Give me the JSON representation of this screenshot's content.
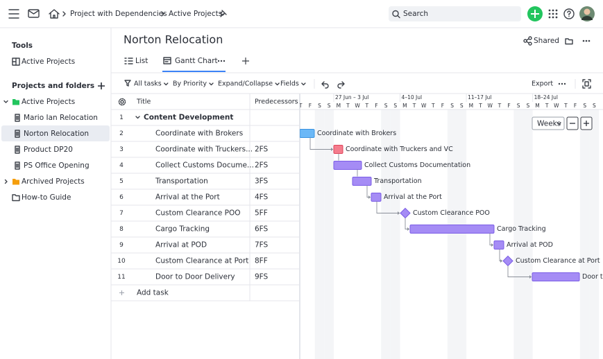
{
  "topbar": {
    "breadcrumb": [
      "Project with Dependencies",
      "Active Projects"
    ],
    "search_placeholder": "Search"
  },
  "sidebar": {
    "tools_heading": "Tools",
    "tools": [
      "Active Projects"
    ],
    "projects_heading": "Projects and folders",
    "tree": [
      "Active Projects",
      "Mario Ian Relocation",
      "Norton Relocation",
      "Product DP20",
      "PS Office Opening",
      "Archived Projects",
      "How-to Guide"
    ]
  },
  "main": {
    "title": "Norton Relocation",
    "shared": "Shared",
    "tabs": [
      "List",
      "Gantt Chart"
    ],
    "toolbar": [
      "All tasks",
      "By Priority",
      "Expand/Collapse",
      "Fields"
    ],
    "export": "Export"
  },
  "table": {
    "headers": [
      "Title",
      "Predecessors"
    ],
    "rows": [
      [
        "1",
        "Content Development",
        ""
      ],
      [
        "2",
        "Coordinate with Brokers",
        ""
      ],
      [
        "3",
        "Coordinate with Truckers...",
        "2FS"
      ],
      [
        "4",
        "Collect Customs Docume...",
        "2FS"
      ],
      [
        "5",
        "Transportation",
        "3FS"
      ],
      [
        "6",
        "Arrival at the Port",
        "4FS"
      ],
      [
        "7",
        "Custom Clearance POO",
        "5FF"
      ],
      [
        "8",
        "Cargo Tracking",
        "6FS"
      ],
      [
        "9",
        "Arrival at POD",
        "7FS"
      ],
      [
        "10",
        "Custom Clearance at Port",
        "8FF"
      ],
      [
        "11",
        "Door to Door Delivery",
        "9FS"
      ]
    ],
    "add_task": "Add task"
  },
  "gantt": {
    "weeks": [
      "27 Jun – 3 Jul",
      "4–10 Jul",
      "11–17 Jul",
      "18–24 Jul"
    ],
    "day_letters": [
      "T",
      "F",
      "S",
      "S",
      "M",
      "T",
      "W",
      "T",
      "F",
      "S",
      "S",
      "M",
      "T",
      "W",
      "T",
      "F",
      "S",
      "S",
      "M",
      "T",
      "W",
      "T",
      "F",
      "S",
      "S",
      "M",
      "T",
      "W",
      "T",
      "F",
      "S",
      "S"
    ],
    "bar_labels": [
      "Coordinate with Brokers",
      "Coordinate with Truckers and VC",
      "Collect Customs Documentation",
      "Transportation",
      "Arrival at the Port",
      "Custom Clearance POO",
      "Cargo Tracking",
      "Arrival at POD",
      "Custom Clearance at Port",
      "Door to Door Delivery"
    ],
    "zoom": "Weeks"
  }
}
